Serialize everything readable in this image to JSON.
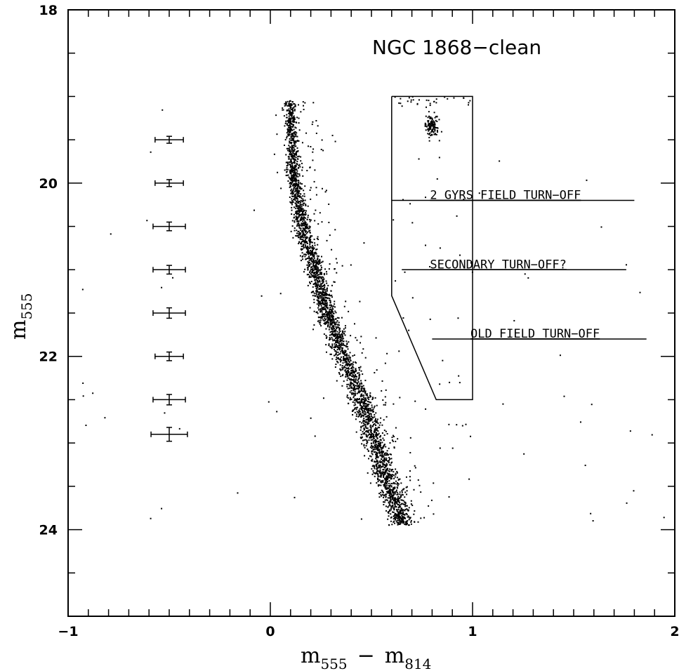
{
  "chart_data": {
    "type": "scatter",
    "title": "NGC 1868−clean",
    "xlabel": {
      "main": "m",
      "sub1": "555",
      "minus": "−",
      "main2": "m",
      "sub2": "814"
    },
    "ylabel": {
      "main": "m",
      "sub": "555"
    },
    "xlim": [
      -1,
      2
    ],
    "ylim": [
      25,
      18
    ],
    "y_inverted": true,
    "x_ticks_major": [
      -1,
      0,
      1,
      2
    ],
    "x_tick_labels": [
      "−1",
      "0",
      "1",
      "2"
    ],
    "y_ticks_major": [
      18,
      20,
      22,
      24
    ],
    "y_tick_labels": [
      "18",
      "20",
      "22",
      "24"
    ],
    "grid": false,
    "sequence": {
      "description_points": [
        [
          0.1,
          19.2
        ],
        [
          0.11,
          19.6
        ],
        [
          0.12,
          20.0
        ],
        [
          0.16,
          20.5
        ],
        [
          0.22,
          21.0
        ],
        [
          0.28,
          21.5
        ],
        [
          0.36,
          22.0
        ],
        [
          0.45,
          22.5
        ],
        [
          0.52,
          23.0
        ],
        [
          0.59,
          23.5
        ],
        [
          0.66,
          23.95
        ]
      ]
    },
    "error_bars": [
      {
        "x": -0.5,
        "y": 19.5,
        "xerr": 0.07,
        "yerr": 0.04
      },
      {
        "x": -0.5,
        "y": 20.0,
        "xerr": 0.07,
        "yerr": 0.04
      },
      {
        "x": -0.5,
        "y": 20.5,
        "xerr": 0.08,
        "yerr": 0.05
      },
      {
        "x": -0.5,
        "y": 21.0,
        "xerr": 0.08,
        "yerr": 0.05
      },
      {
        "x": -0.5,
        "y": 21.5,
        "xerr": 0.08,
        "yerr": 0.06
      },
      {
        "x": -0.5,
        "y": 22.0,
        "xerr": 0.07,
        "yerr": 0.05
      },
      {
        "x": -0.5,
        "y": 22.5,
        "xerr": 0.08,
        "yerr": 0.06
      },
      {
        "x": -0.5,
        "y": 22.9,
        "xerr": 0.09,
        "yerr": 0.08
      }
    ],
    "box": [
      [
        0.6,
        19.0
      ],
      [
        1.0,
        19.0
      ],
      [
        1.0,
        22.5
      ],
      [
        0.82,
        22.5
      ],
      [
        0.6,
        21.3
      ],
      [
        0.6,
        19.0
      ]
    ],
    "annotations": [
      {
        "text": "2 GYRS FIELD TURN−OFF",
        "x": 0.8,
        "y": 20.2,
        "line_x": [
          0.6,
          1.8
        ]
      },
      {
        "text": "SECONDARY TURN−OFF?",
        "x": 0.8,
        "y": 21.0,
        "line_x": [
          0.65,
          1.76
        ]
      },
      {
        "text": "OLD FIELD TURN−OFF",
        "x": 1.0,
        "y": 21.8,
        "line_x": [
          0.8,
          1.86
        ]
      }
    ],
    "clump": {
      "x": 0.8,
      "y": 19.35
    }
  }
}
